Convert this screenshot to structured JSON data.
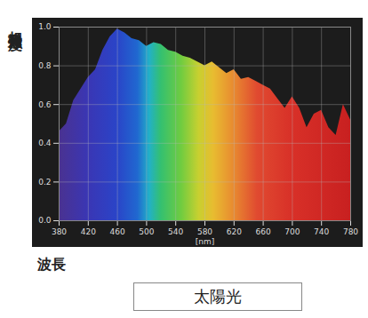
{
  "chart_data": {
    "type": "area",
    "title": "太陽光",
    "xlabel": "波長",
    "ylabel": "相対発光強度",
    "annotations": [
      "[nm]"
    ],
    "x": [
      380,
      390,
      400,
      410,
      420,
      430,
      440,
      450,
      460,
      470,
      480,
      490,
      500,
      510,
      520,
      530,
      540,
      550,
      560,
      570,
      580,
      590,
      600,
      610,
      620,
      630,
      640,
      650,
      660,
      670,
      680,
      690,
      700,
      710,
      720,
      730,
      740,
      750,
      760,
      770,
      780
    ],
    "values": [
      0.46,
      0.5,
      0.62,
      0.68,
      0.74,
      0.78,
      0.88,
      0.95,
      0.99,
      0.97,
      0.94,
      0.93,
      0.9,
      0.92,
      0.91,
      0.88,
      0.87,
      0.85,
      0.84,
      0.82,
      0.8,
      0.82,
      0.79,
      0.76,
      0.78,
      0.73,
      0.74,
      0.72,
      0.7,
      0.68,
      0.63,
      0.58,
      0.64,
      0.58,
      0.48,
      0.55,
      0.57,
      0.48,
      0.44,
      0.6,
      0.52
    ],
    "xlim": [
      380,
      780
    ],
    "xticks": [
      380,
      420,
      460,
      500,
      540,
      580,
      620,
      660,
      700,
      740,
      780
    ],
    "ylim": [
      0,
      1
    ],
    "yticks": [
      {
        "value": 0,
        "label": "0.0"
      },
      0.2,
      0.4,
      0.6,
      0.8,
      {
        "value": 1,
        "label": "1.0"
      }
    ],
    "grid": true
  }
}
